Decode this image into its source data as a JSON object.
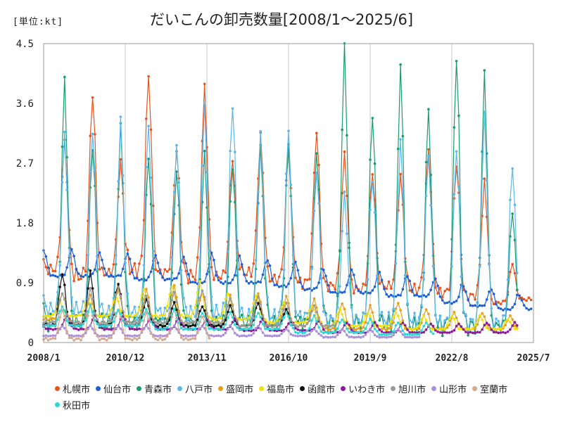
{
  "page": {
    "unit_label": "[単位:kt]",
    "title": "だいこんの卸売数量[2008/1～2025/6]"
  },
  "chart_data": {
    "type": "line",
    "title": "だいこんの卸売数量[2008/1～2025/6]",
    "unit": "[単位:kt]",
    "xlabel": "",
    "ylabel": "",
    "x_start": "2008-01",
    "x_end": "2025-07",
    "x_tick_labels": [
      "2008/1",
      "2010/12",
      "2013/11",
      "2016/10",
      "2019/9",
      "2022/8",
      "2025/7"
    ],
    "x_tick_months": [
      "2008-01",
      "2010-12",
      "2013-11",
      "2016-10",
      "2019-09",
      "2022-08",
      "2025-07"
    ],
    "ylim": [
      0,
      4.5
    ],
    "y_ticks": [
      0,
      0.9,
      1.8,
      2.7,
      3.6,
      4.5
    ],
    "y_tick_labels": [
      "0",
      "0.9",
      "1.8",
      "2.7",
      "3.6",
      "4.5"
    ],
    "grid": "vertical",
    "legend_position": "bottom",
    "series": [
      {
        "name": "札幌市",
        "color": "#e8541c",
        "start": "2008-01",
        "end": "2025-06",
        "peak_month": 10,
        "trough_month": 4,
        "peaks": [
          3.0,
          3.8,
          2.7,
          4.05,
          2.9,
          3.8,
          2.8,
          3.1,
          2.9,
          3.2,
          2.8,
          2.6,
          2.5,
          2.9,
          2.7,
          2.4,
          1.2,
          1.3
        ],
        "troughs": [
          1.1,
          1.0,
          1.05,
          1.1,
          1.05,
          1.0,
          1.0,
          1.05,
          0.95,
          0.9,
          0.85,
          0.8,
          0.85,
          0.8,
          0.75,
          0.7,
          0.6,
          0.65
        ]
      },
      {
        "name": "仙台市",
        "color": "#1f5fd6",
        "start": "2008-01",
        "end": "2025-06",
        "peak_month": 1,
        "trough_month": 8,
        "peaks": [
          1.4,
          1.4,
          1.35,
          1.35,
          1.3,
          1.3,
          1.35,
          1.3,
          1.25,
          1.2,
          1.1,
          1.1,
          1.05,
          1.0,
          0.95,
          0.85,
          0.8,
          0.7
        ],
        "troughs": [
          1.0,
          1.0,
          1.0,
          0.95,
          0.95,
          0.9,
          0.9,
          0.9,
          0.85,
          0.8,
          0.75,
          0.75,
          0.7,
          0.7,
          0.6,
          0.55,
          0.5,
          0.5
        ]
      },
      {
        "name": "青森市",
        "color": "#1a9c6e",
        "start": "2008-01",
        "end": "2024-12",
        "peak_month": 10,
        "trough_month": 5,
        "peaks": [
          3.9,
          3.0,
          3.2,
          2.8,
          2.6,
          2.8,
          2.7,
          2.9,
          3.0,
          2.9,
          4.35,
          3.5,
          4.1,
          3.5,
          4.35,
          3.95,
          2.0
        ],
        "troughs": [
          0.3,
          0.3,
          0.3,
          0.3,
          0.3,
          0.3,
          0.3,
          0.3,
          0.3,
          0.3,
          0.3,
          0.3,
          0.25,
          0.25,
          0.25,
          0.25,
          0.25
        ]
      },
      {
        "name": "八戸市",
        "color": "#5bb8ec",
        "start": "2008-01",
        "end": "2024-12",
        "peak_month": 10,
        "trough_month": 5,
        "peaks": [
          3.1,
          3.25,
          3.3,
          3.3,
          3.0,
          3.5,
          3.65,
          3.1,
          3.2,
          2.6,
          2.2,
          2.5,
          3.0,
          2.8,
          2.95,
          3.35,
          2.7
        ],
        "troughs": [
          0.5,
          0.5,
          0.45,
          0.45,
          0.45,
          0.45,
          0.45,
          0.4,
          0.4,
          0.4,
          0.35,
          0.35,
          0.35,
          0.35,
          0.3,
          0.3,
          0.3
        ]
      },
      {
        "name": "盛岡市",
        "color": "#e6a019",
        "start": "2008-01",
        "end": "2024-12",
        "peak_month": 9,
        "trough_month": 3,
        "peaks": [
          0.75,
          0.7,
          0.8,
          0.8,
          0.85,
          0.75,
          0.7,
          0.75,
          0.7,
          0.65,
          0.6,
          0.55,
          0.6,
          0.5,
          0.45,
          0.45,
          0.4
        ],
        "troughs": [
          0.35,
          0.3,
          0.3,
          0.3,
          0.3,
          0.3,
          0.25,
          0.25,
          0.25,
          0.25,
          0.2,
          0.2,
          0.2,
          0.2,
          0.2,
          0.2,
          0.2
        ]
      },
      {
        "name": "福島市",
        "color": "#f0e010",
        "start": "2008-01",
        "end": "2024-12",
        "peak_month": 8,
        "trough_month": 2,
        "peaks": [
          0.6,
          0.65,
          0.7,
          0.8,
          0.85,
          0.9,
          0.75,
          0.7,
          0.6,
          0.55,
          0.5,
          0.45,
          0.45,
          0.4,
          0.4,
          0.4,
          0.35
        ],
        "troughs": [
          0.4,
          0.4,
          0.4,
          0.4,
          0.4,
          0.4,
          0.35,
          0.35,
          0.3,
          0.3,
          0.25,
          0.25,
          0.25,
          0.2,
          0.2,
          0.2,
          0.2
        ]
      },
      {
        "name": "函館市",
        "color": "#111111",
        "start": "2008-01",
        "end": "2016-12",
        "peak_month": 9,
        "trough_month": 4,
        "peaks": [
          1.05,
          1.05,
          0.9,
          0.65,
          0.6,
          0.55,
          0.55,
          0.6,
          0.5
        ],
        "troughs": [
          0.25,
          0.25,
          0.25,
          0.25,
          0.25,
          0.25,
          0.25,
          0.25,
          0.25
        ]
      },
      {
        "name": "いわき市",
        "color": "#8c1a9c",
        "start": "2008-01",
        "end": "2024-12",
        "peak_month": 11,
        "trough_month": 5,
        "peaks": [
          0.4,
          0.4,
          0.4,
          0.38,
          0.36,
          0.35,
          0.35,
          0.35,
          0.33,
          0.32,
          0.3,
          0.3,
          0.3,
          0.28,
          0.28,
          0.3,
          0.3
        ],
        "troughs": [
          0.2,
          0.2,
          0.2,
          0.2,
          0.2,
          0.2,
          0.2,
          0.18,
          0.18,
          0.18,
          0.15,
          0.15,
          0.15,
          0.15,
          0.15,
          0.15,
          0.15
        ]
      },
      {
        "name": "旭川市",
        "color": "#9a9a9a",
        "start": "2008-01",
        "end": "2018-06",
        "peak_month": 9,
        "trough_month": 4,
        "peaks": [
          0.75,
          0.8,
          0.85,
          0.7,
          0.75,
          0.8,
          0.65,
          0.7,
          0.6,
          0.55,
          0.5
        ],
        "troughs": [
          0.3,
          0.3,
          0.3,
          0.3,
          0.3,
          0.3,
          0.3,
          0.25,
          0.25,
          0.25,
          0.25
        ]
      },
      {
        "name": "山形市",
        "color": "#a990d8",
        "start": "2008-01",
        "end": "2021-06",
        "peak_month": 9,
        "trough_month": 4,
        "peaks": [
          0.25,
          0.25,
          0.25,
          0.25,
          0.25,
          0.25,
          0.25,
          0.25,
          0.2,
          0.2,
          0.2,
          0.2,
          0.2,
          0.2
        ],
        "troughs": [
          0.1,
          0.1,
          0.1,
          0.1,
          0.1,
          0.1,
          0.1,
          0.1,
          0.1,
          0.1,
          0.08,
          0.08,
          0.08,
          0.08
        ]
      },
      {
        "name": "室蘭市",
        "color": "#d6a88c",
        "start": "2008-01",
        "end": "2013-12",
        "peak_month": 9,
        "trough_month": 4,
        "peaks": [
          0.5,
          0.55,
          0.5,
          0.45,
          0.5,
          0.4
        ],
        "troughs": [
          0.05,
          0.05,
          0.05,
          0.05,
          0.05,
          0.05
        ]
      },
      {
        "name": "秋田市",
        "color": "#2ed6d6",
        "start": "2008-01",
        "end": "2021-12",
        "peak_month": 9,
        "trough_month": 3,
        "peaks": [
          0.55,
          0.55,
          0.5,
          0.5,
          0.5,
          0.45,
          0.45,
          0.45,
          0.45,
          0.4,
          0.35,
          0.35,
          0.3,
          0.3
        ],
        "troughs": [
          0.25,
          0.25,
          0.25,
          0.25,
          0.2,
          0.2,
          0.2,
          0.2,
          0.2,
          0.15,
          0.15,
          0.15,
          0.12,
          0.12
        ]
      }
    ]
  }
}
